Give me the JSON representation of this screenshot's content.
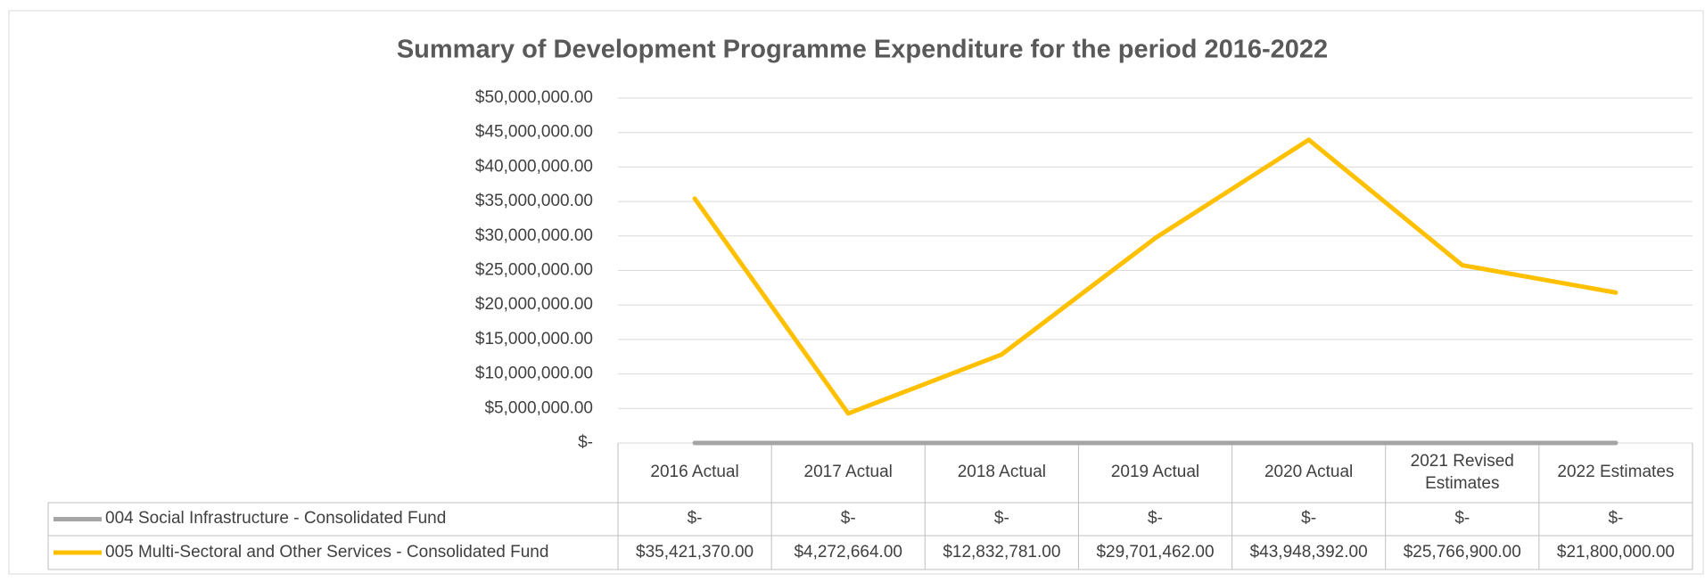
{
  "chart_data": {
    "type": "line",
    "title": "Summary of Development Programme Expenditure for the period 2016-2022",
    "categories": [
      "2016 Actual",
      "2017 Actual",
      "2018 Actual",
      "2019 Actual",
      "2020  Actual",
      "2021 Revised Estimates",
      "2022 Estimates"
    ],
    "series": [
      {
        "name": "004 Social Infrastructure - Consolidated Fund",
        "color": "#a5a5a5",
        "values": [
          0,
          0,
          0,
          0,
          0,
          0,
          0
        ],
        "value_labels": [
          "$-",
          "$-",
          "$-",
          "$-",
          "$-",
          "$-",
          "$-"
        ]
      },
      {
        "name": "005 Multi-Sectoral and Other Services - Consolidated Fund",
        "color": "#ffc000",
        "values": [
          35421370,
          4272664,
          12832781,
          29701462,
          43948392,
          25766900,
          21800000
        ],
        "value_labels": [
          "$35,421,370.00",
          "$4,272,664.00",
          "$12,832,781.00",
          "$29,701,462.00",
          "$43,948,392.00",
          "$25,766,900.00",
          "$21,800,000.00"
        ]
      }
    ],
    "ylim": [
      0,
      50000000
    ],
    "yticks": [
      {
        "value": 0,
        "label": "$-"
      },
      {
        "value": 5000000,
        "label": "$5,000,000.00"
      },
      {
        "value": 10000000,
        "label": "$10,000,000.00"
      },
      {
        "value": 15000000,
        "label": "$15,000,000.00"
      },
      {
        "value": 20000000,
        "label": "$20,000,000.00"
      },
      {
        "value": 25000000,
        "label": "$25,000,000.00"
      },
      {
        "value": 30000000,
        "label": "$30,000,000.00"
      },
      {
        "value": 35000000,
        "label": "$35,000,000.00"
      },
      {
        "value": 40000000,
        "label": "$40,000,000.00"
      },
      {
        "value": 45000000,
        "label": "$45,000,000.00"
      },
      {
        "value": 50000000,
        "label": "$50,000,000.00"
      }
    ],
    "grid": true
  }
}
